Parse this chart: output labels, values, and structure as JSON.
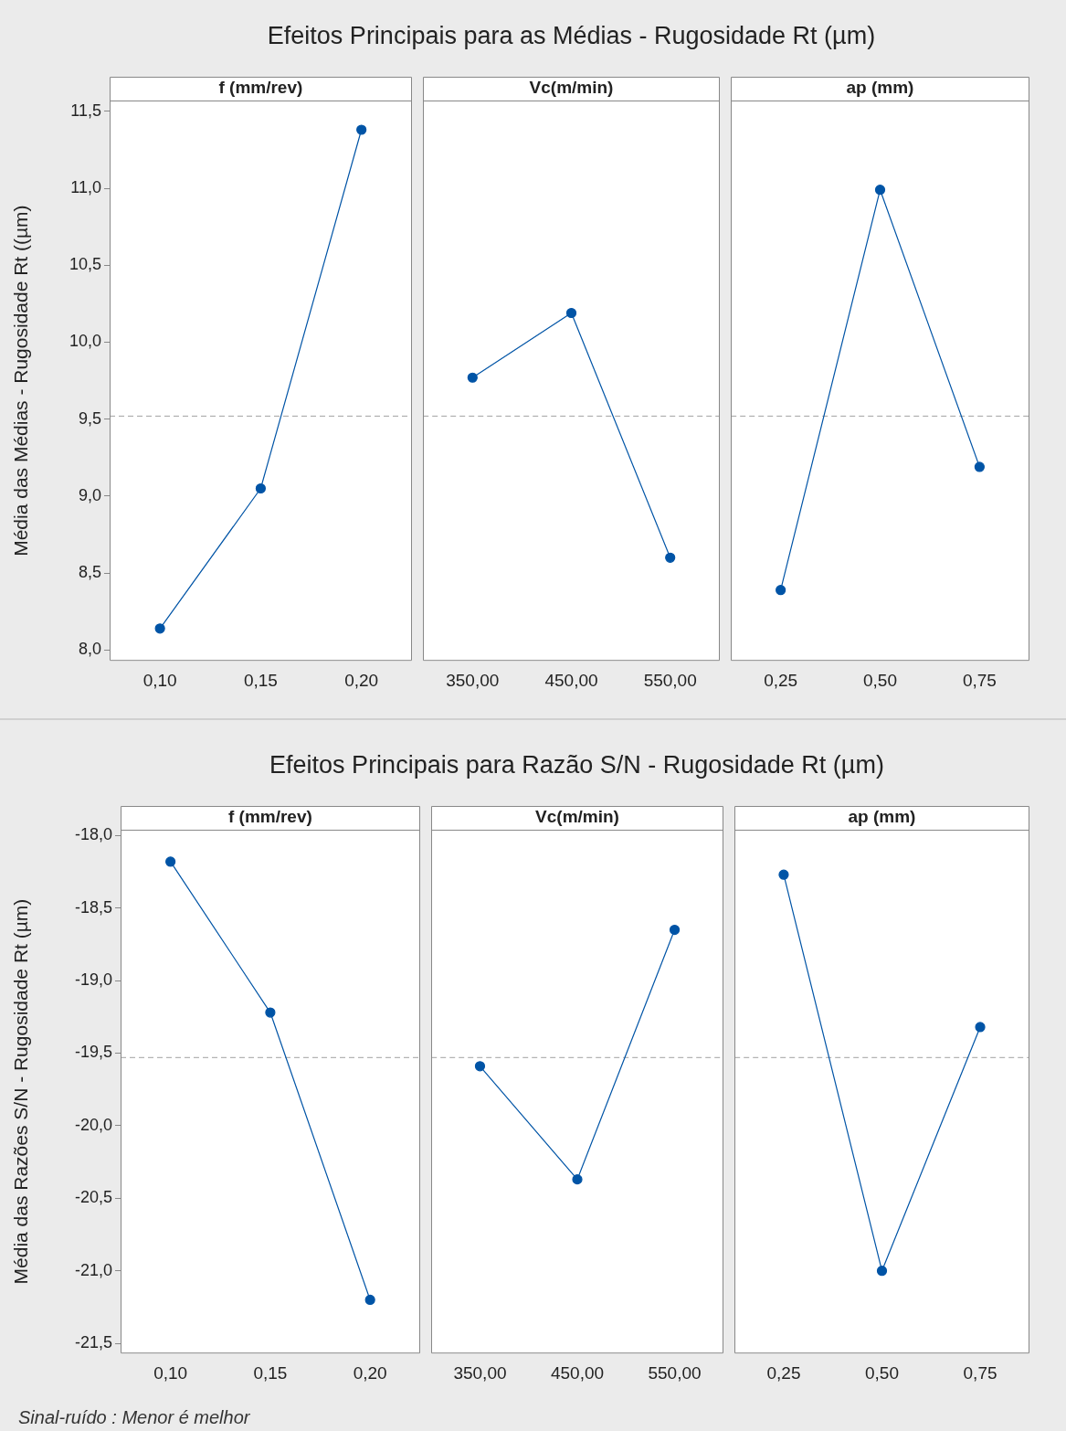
{
  "chart_data": [
    {
      "type": "line",
      "title": "Efeitos Principais para as Médias - Rugosidade Rt (µm)",
      "subtitle": "f (mm/rev)",
      "ylabel": "Média das Médias - Rugosidade Rt ((µm)",
      "categories": [
        "0,10",
        "0,15",
        "0,20"
      ],
      "values": [
        8.14,
        9.05,
        11.38
      ],
      "color": "#0054a6",
      "marker": "circle",
      "ylim": [
        7.93,
        11.57
      ],
      "yticks": [
        {
          "value": 8,
          "label": "8,0"
        },
        {
          "value": 8.5,
          "label": "8,5"
        },
        {
          "value": 9,
          "label": "9,0"
        },
        {
          "value": 9.5,
          "label": "9,5"
        },
        {
          "value": 10,
          "label": "10,0"
        },
        {
          "value": 10.5,
          "label": "10,5"
        },
        {
          "value": 11,
          "label": "11,0"
        },
        {
          "value": 11.5,
          "label": "11,5"
        }
      ],
      "ref_lines": [
        {
          "axis": "y",
          "value": 9.52,
          "color": "#a0a0a0",
          "line_style": "dashed"
        }
      ]
    },
    {
      "type": "line",
      "subtitle": "Vc(m/min)",
      "categories": [
        "350,00",
        "450,00",
        "550,00"
      ],
      "values": [
        9.77,
        10.19,
        8.6
      ],
      "color": "#0054a6",
      "marker": "circle",
      "ylim": [
        7.93,
        11.57
      ],
      "tick_labels": "x",
      "ref_lines": [
        {
          "axis": "y",
          "value": 9.52,
          "color": "#a0a0a0",
          "line_style": "dashed"
        }
      ]
    },
    {
      "type": "line",
      "subtitle": "ap (mm)",
      "categories": [
        "0,25",
        "0,50",
        "0,75"
      ],
      "values": [
        8.39,
        10.99,
        9.19
      ],
      "color": "#0054a6",
      "marker": "circle",
      "ylim": [
        7.93,
        11.57
      ],
      "tick_labels": "x",
      "ref_lines": [
        {
          "axis": "y",
          "value": 9.52,
          "color": "#a0a0a0",
          "line_style": "dashed"
        }
      ]
    },
    {
      "type": "line",
      "title": "Efeitos Principais para Razão S/N - Rugosidade Rt (µm)",
      "subtitle": "f (mm/rev)",
      "ylabel": "Média das Razões S/N - Rugosidade Rt (µm)",
      "categories": [
        "0,10",
        "0,15",
        "0,20"
      ],
      "values": [
        -18.18,
        -19.22,
        -21.2
      ],
      "color": "#0054a6",
      "marker": "circle",
      "ylim": [
        -21.57,
        -17.96
      ],
      "yticks": [
        {
          "value": -21.5,
          "label": "-21,5"
        },
        {
          "value": -21,
          "label": "-21,0"
        },
        {
          "value": -20.5,
          "label": "-20,5"
        },
        {
          "value": -20,
          "label": "-20,0"
        },
        {
          "value": -19.5,
          "label": "-19,5"
        },
        {
          "value": -19,
          "label": "-19,0"
        },
        {
          "value": -18.5,
          "label": "-18,5"
        },
        {
          "value": -18,
          "label": "-18,0"
        }
      ],
      "ref_lines": [
        {
          "axis": "y",
          "value": -19.53,
          "color": "#a0a0a0",
          "line_style": "dashed"
        }
      ]
    },
    {
      "type": "line",
      "subtitle": "Vc(m/min)",
      "categories": [
        "350,00",
        "450,00",
        "550,00"
      ],
      "values": [
        -19.59,
        -20.37,
        -18.65
      ],
      "color": "#0054a6",
      "marker": "circle",
      "ylim": [
        -21.57,
        -17.96
      ],
      "tick_labels": "x",
      "ref_lines": [
        {
          "axis": "y",
          "value": -19.53,
          "color": "#a0a0a0",
          "line_style": "dashed"
        }
      ]
    },
    {
      "type": "line",
      "subtitle": "ap (mm)",
      "categories": [
        "0,25",
        "0,50",
        "0,75"
      ],
      "values": [
        -18.27,
        -21.0,
        -19.32
      ],
      "color": "#0054a6",
      "marker": "circle",
      "ylim": [
        -21.57,
        -17.96
      ],
      "tick_labels": "x",
      "ref_lines": [
        {
          "axis": "y",
          "value": -19.53,
          "color": "#a0a0a0",
          "line_style": "dashed"
        }
      ],
      "annotations": [
        "Sinal-ruído : Menor é melhor"
      ]
    }
  ]
}
